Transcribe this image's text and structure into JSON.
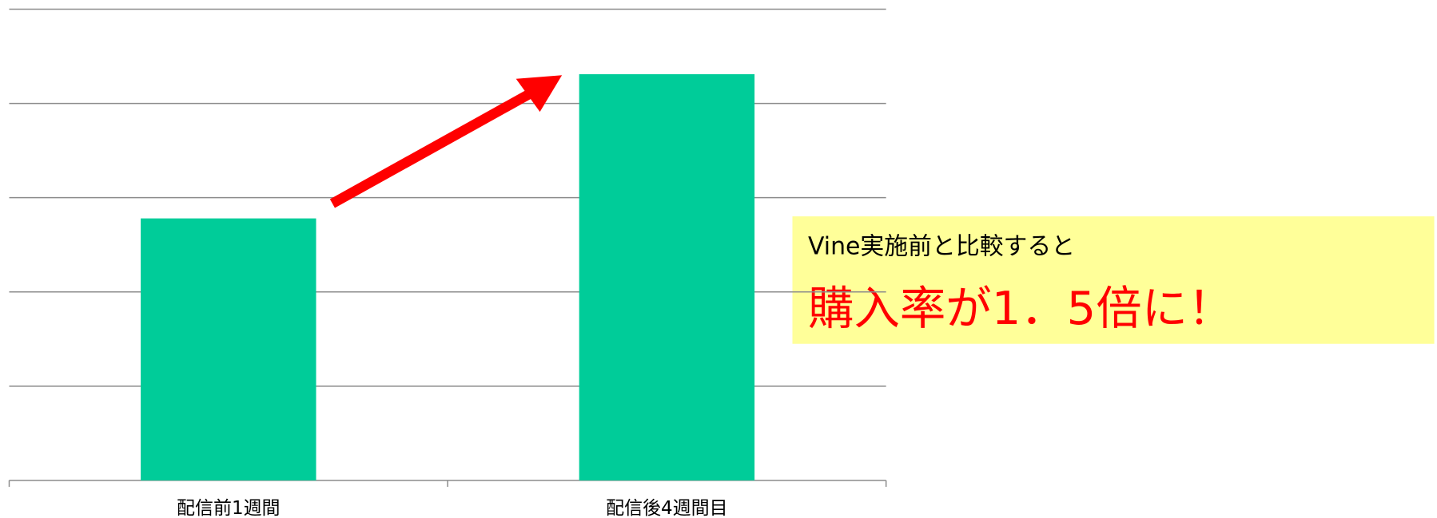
{
  "chart_data": {
    "type": "bar",
    "categories": [
      "配信前1週間",
      "配信後4週間目"
    ],
    "values": [
      2.78,
      4.31
    ],
    "color": "#00cc99",
    "ylim": [
      0,
      5
    ],
    "yticks": [
      0,
      1,
      2,
      3,
      4,
      5
    ],
    "grid": true,
    "annotations": [
      "Vine実施前と比較すると",
      "購入率が1．5倍に！"
    ]
  }
}
